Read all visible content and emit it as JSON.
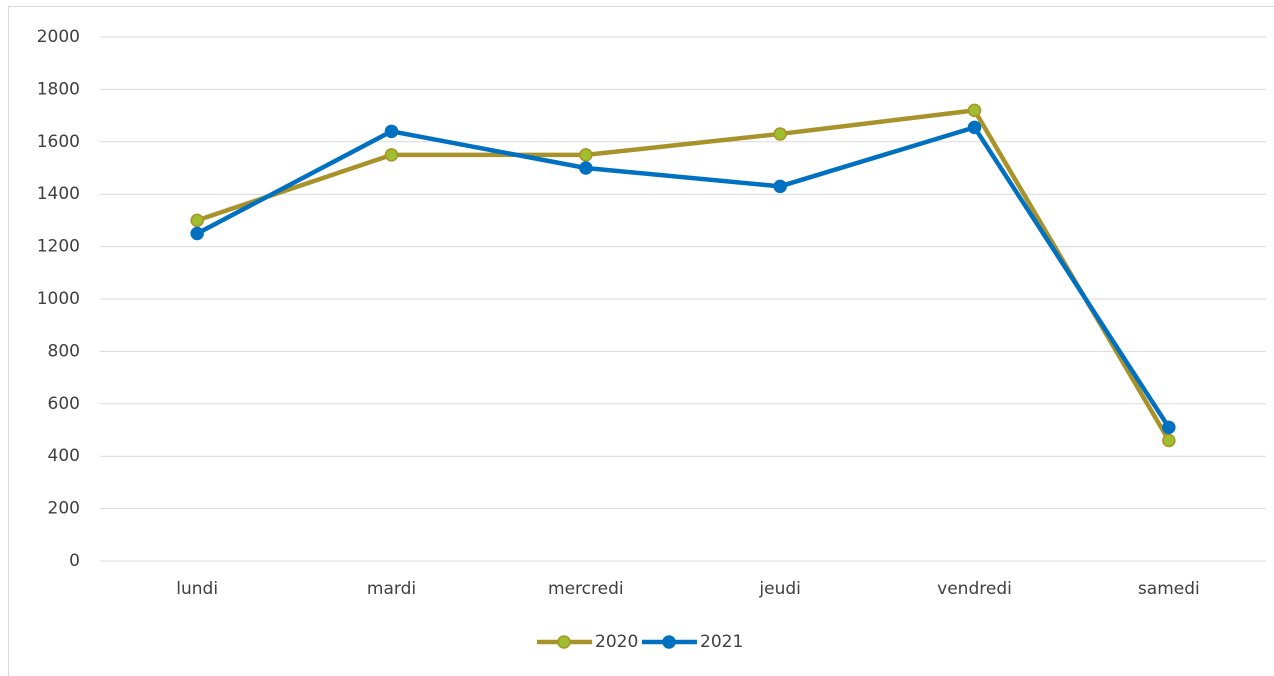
{
  "chart_data": {
    "type": "line",
    "categories": [
      "lundi",
      "mardi",
      "mercredi",
      "jeudi",
      "vendredi",
      "samedi"
    ],
    "series": [
      {
        "name": "2020",
        "color": "#a8922a",
        "marker_color": "#9fbf2f",
        "values": [
          1300,
          1550,
          1550,
          1630,
          1720,
          460
        ]
      },
      {
        "name": "2021",
        "color": "#0070c0",
        "marker_color": "#0070c0",
        "values": [
          1250,
          1640,
          1500,
          1430,
          1655,
          510
        ]
      }
    ],
    "ylim": [
      0,
      2000
    ],
    "yticks": [
      0,
      200,
      400,
      600,
      800,
      1000,
      1200,
      1400,
      1600,
      1800,
      2000
    ],
    "grid": true,
    "legend": "bottom"
  }
}
